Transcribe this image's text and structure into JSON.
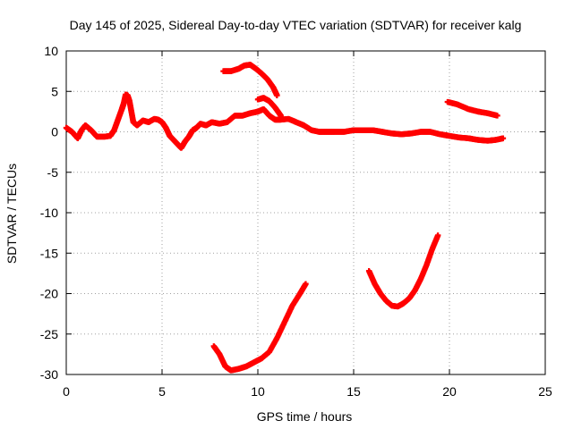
{
  "chart_data": {
    "type": "scatter",
    "title": "Day 145 of 2025, Sidereal Day-to-day VTEC variation (SDTVAR) for receiver kalg",
    "xlabel": "GPS time / hours",
    "ylabel": "SDTVAR / TECUs",
    "xlim": [
      0,
      25
    ],
    "ylim": [
      -30,
      10
    ],
    "x_ticks": [
      {
        "value": 0,
        "label": "0"
      },
      {
        "value": 5,
        "label": "5"
      },
      {
        "value": 10,
        "label": "10"
      },
      {
        "value": 15,
        "label": "15"
      },
      {
        "value": 20,
        "label": "20"
      },
      {
        "value": 25,
        "label": "25"
      }
    ],
    "y_ticks": [
      {
        "value": 10,
        "label": "10"
      },
      {
        "value": 5,
        "label": "5"
      },
      {
        "value": 0,
        "label": "0"
      },
      {
        "value": -5,
        "label": "-5"
      },
      {
        "value": -10,
        "label": "-10"
      },
      {
        "value": -15,
        "label": "-15"
      },
      {
        "value": -20,
        "label": "-20"
      },
      {
        "value": -25,
        "label": "-25"
      },
      {
        "value": -30,
        "label": "-30"
      }
    ],
    "grid": true,
    "marker": "+",
    "color": "#ff0000",
    "series": [
      {
        "name": "main",
        "x": [
          0.0,
          0.3,
          0.6,
          0.8,
          1.0,
          1.3,
          1.6,
          2.0,
          2.3,
          2.5,
          2.7,
          2.9,
          3.0,
          3.1,
          3.2,
          3.3,
          3.4,
          3.5,
          3.7,
          4.0,
          4.3,
          4.6,
          4.8,
          5.0,
          5.2,
          5.4,
          5.6,
          5.8,
          6.0,
          6.2,
          6.4,
          6.6,
          6.8,
          7.0,
          7.3,
          7.6,
          8.0,
          8.4,
          8.8,
          9.2,
          9.6,
          10.0,
          10.3,
          10.6,
          10.9,
          11.2,
          11.6,
          12.0,
          12.4,
          12.8,
          13.2,
          13.6,
          14.0,
          14.5,
          15.0,
          15.5,
          16.0,
          16.5,
          17.0,
          17.5,
          18.0,
          18.5,
          19.0,
          19.5,
          20.0,
          20.5,
          21.0,
          21.5,
          22.0,
          22.4,
          22.8
        ],
        "y": [
          0.5,
          0.0,
          -0.8,
          0.2,
          0.8,
          0.2,
          -0.6,
          -0.6,
          -0.5,
          0.2,
          1.5,
          2.8,
          3.5,
          4.6,
          4.5,
          3.8,
          2.5,
          1.2,
          0.8,
          1.4,
          1.2,
          1.6,
          1.5,
          1.2,
          0.5,
          -0.5,
          -1.0,
          -1.5,
          -2.0,
          -1.2,
          -0.6,
          0.2,
          0.5,
          1.0,
          0.8,
          1.2,
          1.0,
          1.2,
          2.0,
          2.0,
          2.3,
          2.5,
          2.8,
          2.0,
          1.5,
          1.5,
          1.6,
          1.2,
          0.8,
          0.2,
          0.0,
          0.0,
          0.0,
          0.0,
          0.2,
          0.2,
          0.2,
          0.0,
          -0.2,
          -0.3,
          -0.2,
          0.0,
          0.0,
          -0.3,
          -0.5,
          -0.7,
          -0.8,
          -1.0,
          -1.1,
          -1.0,
          -0.8
        ]
      },
      {
        "name": "upper-arc",
        "x": [
          8.2,
          8.6,
          9.0,
          9.3,
          9.6,
          9.9,
          10.2,
          10.5,
          10.8,
          11.0
        ],
        "y": [
          7.5,
          7.5,
          7.8,
          8.2,
          8.3,
          7.8,
          7.2,
          6.5,
          5.5,
          4.5
        ]
      },
      {
        "name": "upper-segment-mid",
        "x": [
          10.0,
          10.3,
          10.6,
          10.9,
          11.2
        ],
        "y": [
          4.0,
          4.2,
          3.8,
          3.0,
          2.0
        ]
      },
      {
        "name": "upper-right-segment",
        "x": [
          19.9,
          20.4,
          21.0,
          21.5,
          22.0,
          22.5
        ],
        "y": [
          3.7,
          3.4,
          2.8,
          2.5,
          2.3,
          2.0
        ]
      },
      {
        "name": "lower-left-arc",
        "x": [
          7.7,
          8.0,
          8.3,
          8.6,
          9.0,
          9.4,
          9.8,
          10.2,
          10.6,
          11.0,
          11.4,
          11.8,
          12.2,
          12.5
        ],
        "y": [
          -26.5,
          -27.5,
          -29.0,
          -29.5,
          -29.3,
          -29.0,
          -28.5,
          -28.0,
          -27.2,
          -25.5,
          -23.5,
          -21.5,
          -20.0,
          -18.8
        ]
      },
      {
        "name": "lower-right-arc",
        "x": [
          15.8,
          16.1,
          16.4,
          16.7,
          17.0,
          17.3,
          17.6,
          17.9,
          18.2,
          18.5,
          18.8,
          19.1,
          19.4
        ],
        "y": [
          -17.2,
          -18.8,
          -20.0,
          -20.9,
          -21.5,
          -21.6,
          -21.2,
          -20.6,
          -19.6,
          -18.2,
          -16.5,
          -14.5,
          -12.8
        ]
      }
    ]
  }
}
